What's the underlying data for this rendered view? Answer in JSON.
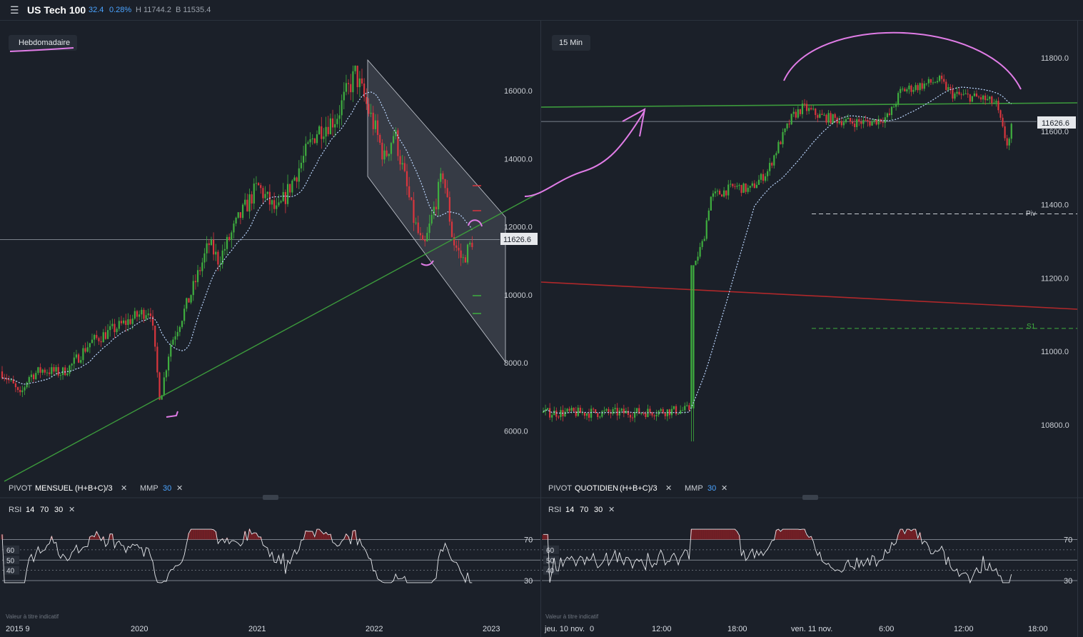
{
  "header": {
    "symbol": "US Tech 100",
    "change": "32.4",
    "change_pct": "0.28%",
    "high": "H 11744.2",
    "bid": "B 11535.4",
    "menu_icon": "hamburger-menu-icon"
  },
  "colors": {
    "background": "#1b2029",
    "up": "#3fae3f",
    "down": "#d9363e",
    "ma": "#bcd7ff",
    "trendline_green": "#3c9a3c",
    "trendline_red": "#b0282a",
    "annotation": "#e07ce6",
    "accent": "#4aa3ff"
  },
  "left_panel": {
    "timeframe": "Hebdomadaire",
    "price_tag": "11626.6",
    "indicator_bar": {
      "pivot": "PIVOT",
      "pivot_period": "MENSUEL",
      "pivot_formula": "(H+B+C)/3",
      "mmp": "MMP",
      "mmp_period": "30"
    },
    "rsi_bar": {
      "name": "RSI",
      "p1": "14",
      "p2": "70",
      "p3": "30"
    },
    "disclaimer": "Valeur à titre indicatif",
    "x_labels": [
      "2015 9",
      "2020",
      "2021",
      "2022",
      "2023"
    ]
  },
  "right_panel": {
    "timeframe": "15 Min",
    "price_tag": "11626.6",
    "pivot_label": "Piv",
    "s1_label": "S1",
    "indicator_bar": {
      "pivot": "PIVOT",
      "pivot_period": "QUOTIDIEN",
      "pivot_formula": "(H+B+C)/3",
      "mmp": "MMP",
      "mmp_period": "30"
    },
    "rsi_bar": {
      "name": "RSI",
      "p1": "14",
      "p2": "70",
      "p3": "30"
    },
    "disclaimer": "Valeur à titre indicatif",
    "x_labels": [
      "jeu. 10 nov.",
      "0",
      "12:00",
      "18:00",
      "ven. 11 nov.",
      "6:00",
      "12:00",
      "18:00"
    ]
  },
  "rsi_levels": [
    "70",
    "60",
    "50",
    "40",
    "30"
  ],
  "chart_data": [
    {
      "type": "candlestick",
      "title": "US Tech 100",
      "timeframe": "Hebdomadaire",
      "y_ticks": [
        6000,
        8000,
        10000,
        12000,
        14000,
        16000
      ],
      "y_tick_labels": [
        "6000.0",
        "8000.0",
        "10000.0",
        "12000.0",
        "14000.0",
        "16000.0"
      ],
      "ylim": [
        4400,
        17800
      ],
      "x_tick_labels": [
        "2015 9",
        "2020",
        "2021",
        "2022",
        "2023"
      ],
      "last_price": 11626.6,
      "close_path": [
        [
          "2019-09",
          7700
        ],
        [
          "2019-10",
          7900
        ],
        [
          "2019-12",
          8600
        ],
        [
          "2020-02",
          9600
        ],
        [
          "2020-03",
          6900
        ],
        [
          "2020-04",
          8500
        ],
        [
          "2020-06",
          9900
        ],
        [
          "2020-08",
          11500
        ],
        [
          "2020-09",
          11000
        ],
        [
          "2020-11",
          12200
        ],
        [
          "2021-01",
          13200
        ],
        [
          "2021-03",
          12400
        ],
        [
          "2021-05",
          13600
        ],
        [
          "2021-07",
          14800
        ],
        [
          "2021-09",
          15200
        ],
        [
          "2021-11",
          16500
        ],
        [
          "2022-01",
          14900
        ],
        [
          "2022-02",
          14000
        ],
        [
          "2022-03",
          14800
        ],
        [
          "2022-05",
          12200
        ],
        [
          "2022-06",
          11300
        ],
        [
          "2022-08",
          13600
        ],
        [
          "2022-09",
          11600
        ],
        [
          "2022-10",
          11000
        ],
        [
          "2022-11",
          11600
        ]
      ],
      "moving_average": "MMP 30",
      "trend_channel": {
        "upper": [
          [
            2021.95,
            16900
          ],
          [
            2023.0,
            11600
          ]
        ],
        "lower": [
          [
            2021.95,
            13500
          ],
          [
            2023.0,
            8000
          ]
        ]
      },
      "support_line": [
        [
          2019.7,
          4400
        ],
        [
          2023.45,
          13700
        ]
      ]
    },
    {
      "type": "candlestick",
      "title": "US Tech 100",
      "timeframe": "15 Min",
      "y_ticks": [
        10800,
        11000,
        11200,
        11400,
        11600,
        11800
      ],
      "y_tick_labels": [
        "10800.0",
        "11000.0",
        "11200.0",
        "11400.0",
        "11600.0",
        "11800.0"
      ],
      "ylim": [
        10640,
        11900
      ],
      "x_tick_labels": [
        "jeu. 10 nov.",
        "0",
        "12:00",
        "18:00",
        "ven. 11 nov.",
        "6:00",
        "12:00",
        "18:00"
      ],
      "last_price": 11626.6,
      "pivot": 11375,
      "s1": 11063,
      "close_path": [
        [
          "10 nov 06:00",
          10833
        ],
        [
          "10 nov 10:00",
          10838
        ],
        [
          "10 nov 14:30",
          10840
        ],
        [
          "10 nov 14:45",
          11235
        ],
        [
          "10 nov 16:00",
          11400
        ],
        [
          "10 nov 18:00",
          11450
        ],
        [
          "10 nov 21:00",
          11550
        ],
        [
          "10 nov 22:00",
          11660
        ],
        [
          "11 nov 02:00",
          11640
        ],
        [
          "11 nov 06:00",
          11645
        ],
        [
          "11 nov 08:00",
          11715
        ],
        [
          "11 nov 11:00",
          11740
        ],
        [
          "11 nov 13:00",
          11690
        ],
        [
          "11 nov 15:00",
          11680
        ],
        [
          "11 nov 15:30",
          11600
        ],
        [
          "11 nov 16:00",
          11626.6
        ]
      ],
      "moving_average": "MMP 30",
      "resistance_line": 11688,
      "red_trendline": [
        [
          0,
          11198
        ],
        [
          1,
          11110
        ]
      ]
    }
  ]
}
